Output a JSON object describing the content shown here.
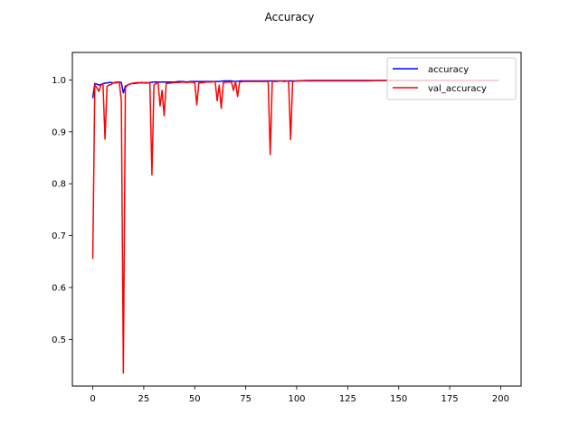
{
  "chart_data": {
    "type": "line",
    "title": "Accuracy",
    "xlabel": "",
    "ylabel": "",
    "xlim": [
      -10,
      210
    ],
    "ylim": [
      0.41,
      1.053
    ],
    "xticks": [
      0,
      25,
      50,
      75,
      100,
      125,
      150,
      175,
      200
    ],
    "yticks": [
      0.5,
      0.6,
      0.7,
      0.8,
      0.9,
      1.0
    ],
    "grid": false,
    "legend_position": "top-right",
    "series": [
      {
        "name": "accuracy",
        "color": "#0000ff",
        "x": [
          0,
          1,
          2,
          3,
          4,
          5,
          6,
          7,
          8,
          9,
          10,
          11,
          12,
          13,
          14,
          15,
          16,
          17,
          18,
          19,
          20,
          22,
          24,
          26,
          28,
          30,
          32,
          34,
          36,
          38,
          40,
          42,
          44,
          46,
          48,
          50,
          52,
          54,
          56,
          58,
          60,
          62,
          64,
          66,
          68,
          70,
          72,
          74,
          76,
          78,
          80,
          85,
          90,
          95,
          100,
          105,
          110,
          115,
          120,
          125,
          130,
          135,
          140,
          145,
          150,
          155,
          160,
          165,
          170,
          175,
          180,
          185,
          190,
          195,
          199
        ],
        "y": [
          0.965,
          0.993,
          0.992,
          0.99,
          0.991,
          0.993,
          0.994,
          0.994,
          0.995,
          0.995,
          0.994,
          0.995,
          0.996,
          0.996,
          0.995,
          0.975,
          0.988,
          0.99,
          0.992,
          0.993,
          0.993,
          0.994,
          0.995,
          0.994,
          0.995,
          0.996,
          0.996,
          0.996,
          0.996,
          0.996,
          0.996,
          0.997,
          0.997,
          0.996,
          0.997,
          0.997,
          0.997,
          0.997,
          0.997,
          0.997,
          0.997,
          0.997,
          0.998,
          0.998,
          0.998,
          0.997,
          0.998,
          0.998,
          0.998,
          0.998,
          0.998,
          0.998,
          0.998,
          0.998,
          0.998,
          0.999,
          0.999,
          0.999,
          0.999,
          0.999,
          0.999,
          0.999,
          0.999,
          0.999,
          0.999,
          0.999,
          0.999,
          0.999,
          0.999,
          0.999,
          0.999,
          0.999,
          0.999,
          0.999,
          0.999
        ]
      },
      {
        "name": "val_accuracy",
        "color": "#ff0000",
        "x": [
          0,
          1,
          2,
          3,
          4,
          5,
          6,
          7,
          8,
          9,
          10,
          11,
          12,
          13,
          14,
          15,
          16,
          17,
          18,
          19,
          20,
          22,
          24,
          26,
          28,
          29,
          30,
          31,
          32,
          33,
          34,
          35,
          36,
          38,
          40,
          42,
          44,
          46,
          48,
          50,
          51,
          52,
          54,
          56,
          58,
          60,
          61,
          62,
          63,
          64,
          66,
          68,
          69,
          70,
          71,
          72,
          74,
          76,
          78,
          80,
          82,
          84,
          86,
          87,
          88,
          90,
          92,
          94,
          96,
          97,
          98,
          100,
          102,
          104,
          106,
          110,
          115,
          120,
          125,
          130,
          135,
          140,
          145,
          150,
          155,
          160,
          165,
          170,
          175,
          180,
          185,
          190,
          195,
          199
        ],
        "y": [
          0.655,
          0.99,
          0.985,
          0.978,
          0.99,
          0.993,
          0.886,
          0.988,
          0.99,
          0.991,
          0.995,
          0.994,
          0.995,
          0.996,
          0.96,
          0.435,
          0.985,
          0.99,
          0.992,
          0.993,
          0.994,
          0.995,
          0.994,
          0.995,
          0.994,
          0.817,
          0.99,
          0.993,
          0.995,
          0.95,
          0.98,
          0.931,
          0.993,
          0.994,
          0.995,
          0.995,
          0.996,
          0.995,
          0.996,
          0.995,
          0.952,
          0.994,
          0.995,
          0.996,
          0.996,
          0.997,
          0.96,
          0.99,
          0.945,
          0.995,
          0.996,
          0.996,
          0.98,
          0.997,
          0.968,
          0.996,
          0.997,
          0.997,
          0.997,
          0.997,
          0.997,
          0.997,
          0.997,
          0.856,
          0.997,
          0.997,
          0.998,
          0.997,
          0.998,
          0.885,
          0.997,
          0.998,
          0.998,
          0.998,
          0.998,
          0.998,
          0.998,
          0.998,
          0.998,
          0.998,
          0.998,
          0.999,
          0.999,
          0.999,
          0.999,
          0.999,
          0.999,
          0.999,
          0.999,
          0.999,
          0.999,
          0.999,
          0.999,
          0.999
        ]
      }
    ]
  }
}
